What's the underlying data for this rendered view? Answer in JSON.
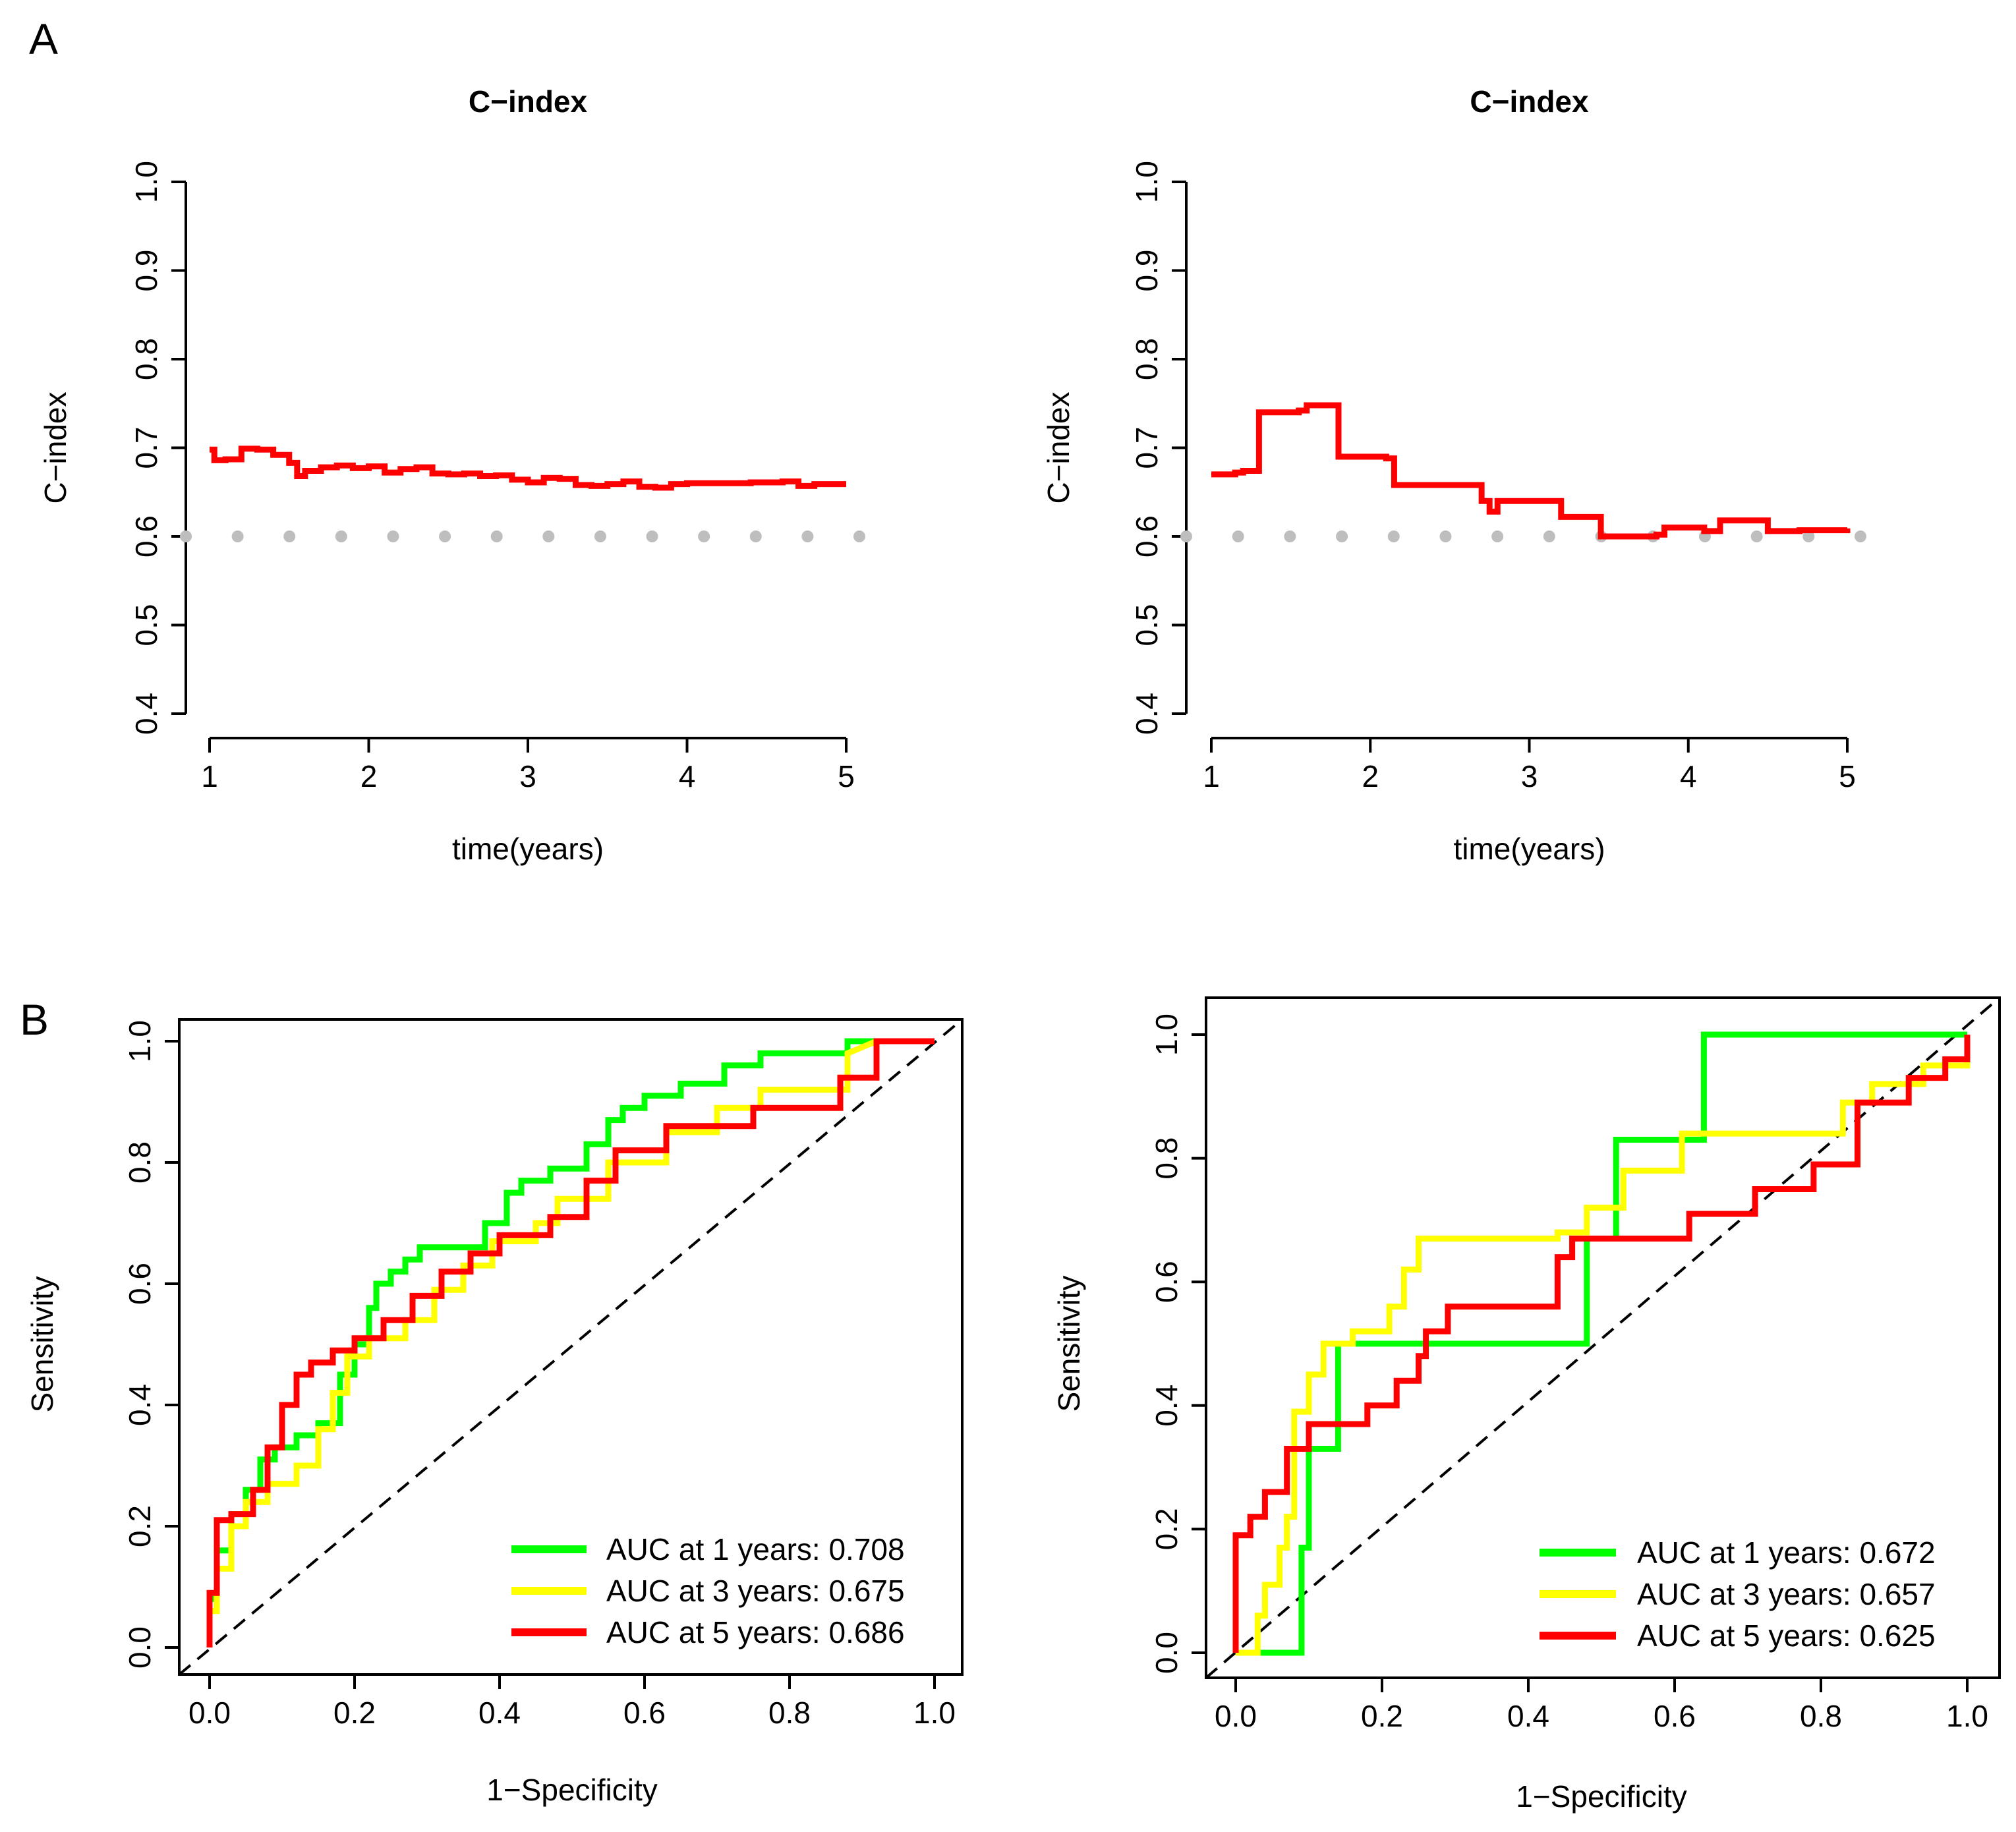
{
  "panel_labels": {
    "a": "A",
    "b": "B"
  },
  "chart_data": [
    {
      "type": "line",
      "panel": "A",
      "title": "C−index",
      "xlabel": "time(years)",
      "ylabel": "C−index",
      "xlim": [
        1,
        5
      ],
      "ylim": [
        0.4,
        1.0
      ],
      "xticks": [
        1,
        2,
        3,
        4,
        5
      ],
      "xtick_labels": [
        "1",
        "2",
        "3",
        "4",
        "5"
      ],
      "yticks": [
        0.4,
        0.5,
        0.6,
        0.7,
        0.8,
        0.9,
        1.0
      ],
      "ytick_labels": [
        "0.4",
        "0.5",
        "0.6",
        "0.7",
        "0.8",
        "0.9",
        "1.0"
      ],
      "reference": {
        "y": 0.6,
        "style": "dotted",
        "color": "#bebebe"
      },
      "series": [
        {
          "name": "C-index",
          "color": "#ff0000",
          "x": [
            1.0,
            1.03,
            1.1,
            1.2,
            1.3,
            1.4,
            1.5,
            1.55,
            1.6,
            1.7,
            1.8,
            1.9,
            2.0,
            2.1,
            2.2,
            2.3,
            2.4,
            2.5,
            2.6,
            2.7,
            2.8,
            2.9,
            3.0,
            3.1,
            3.2,
            3.3,
            3.4,
            3.5,
            3.6,
            3.7,
            3.8,
            3.9,
            4.0,
            4.2,
            4.4,
            4.6,
            4.7,
            4.8,
            5.0
          ],
          "y": [
            0.698,
            0.686,
            0.687,
            0.699,
            0.698,
            0.692,
            0.683,
            0.668,
            0.674,
            0.678,
            0.68,
            0.677,
            0.679,
            0.672,
            0.676,
            0.678,
            0.671,
            0.67,
            0.671,
            0.668,
            0.669,
            0.664,
            0.661,
            0.666,
            0.665,
            0.658,
            0.657,
            0.659,
            0.662,
            0.656,
            0.655,
            0.659,
            0.66,
            0.66,
            0.661,
            0.662,
            0.657,
            0.659,
            0.659
          ]
        }
      ]
    },
    {
      "type": "line",
      "panel": "A",
      "title": "C−index",
      "xlabel": "time(years)",
      "ylabel": "C−index",
      "xlim": [
        1,
        5
      ],
      "ylim": [
        0.4,
        1.0
      ],
      "xticks": [
        1,
        2,
        3,
        4,
        5
      ],
      "xtick_labels": [
        "1",
        "2",
        "3",
        "4",
        "5"
      ],
      "yticks": [
        0.4,
        0.5,
        0.6,
        0.7,
        0.8,
        0.9,
        1.0
      ],
      "ytick_labels": [
        "0.4",
        "0.5",
        "0.6",
        "0.7",
        "0.8",
        "0.9",
        "1.0"
      ],
      "reference": {
        "y": 0.6,
        "style": "dotted",
        "color": "#bebebe"
      },
      "series": [
        {
          "name": "C-index",
          "color": "#ff0000",
          "x": [
            1.0,
            1.15,
            1.2,
            1.3,
            1.55,
            1.6,
            1.8,
            2.1,
            2.15,
            2.5,
            2.7,
            2.75,
            2.8,
            3.0,
            3.2,
            3.45,
            3.8,
            3.85,
            4.1,
            4.2,
            4.5,
            4.7,
            5.0
          ],
          "y": [
            0.67,
            0.672,
            0.674,
            0.74,
            0.742,
            0.748,
            0.69,
            0.688,
            0.658,
            0.658,
            0.64,
            0.628,
            0.64,
            0.64,
            0.622,
            0.6,
            0.602,
            0.61,
            0.606,
            0.618,
            0.606,
            0.607,
            0.609
          ]
        }
      ]
    },
    {
      "type": "line",
      "panel": "B",
      "title": "",
      "xlabel": "1−Specificity",
      "ylabel": "Sensitivity",
      "xlim": [
        0,
        1
      ],
      "ylim": [
        0,
        1
      ],
      "xticks": [
        0.0,
        0.2,
        0.4,
        0.6,
        0.8,
        1.0
      ],
      "xtick_labels": [
        "0.0",
        "0.2",
        "0.4",
        "0.6",
        "0.8",
        "1.0"
      ],
      "yticks": [
        0.0,
        0.2,
        0.4,
        0.6,
        0.8,
        1.0
      ],
      "ytick_labels": [
        "0.0",
        "0.2",
        "0.4",
        "0.6",
        "0.8",
        "1.0"
      ],
      "reference": {
        "diagonal": true,
        "style": "dashed"
      },
      "legend_position": "bottom-right",
      "series": [
        {
          "name": "AUC at 1 years: 0.708",
          "color": "#00ff00",
          "x": [
            0.0,
            0.0,
            0.01,
            0.01,
            0.03,
            0.03,
            0.05,
            0.05,
            0.07,
            0.07,
            0.09,
            0.09,
            0.12,
            0.12,
            0.15,
            0.15,
            0.18,
            0.18,
            0.2,
            0.2,
            0.22,
            0.22,
            0.23,
            0.23,
            0.25,
            0.25,
            0.27,
            0.27,
            0.29,
            0.29,
            0.38,
            0.38,
            0.41,
            0.41,
            0.43,
            0.43,
            0.47,
            0.47,
            0.52,
            0.52,
            0.55,
            0.55,
            0.57,
            0.57,
            0.6,
            0.6,
            0.65,
            0.65,
            0.71,
            0.71,
            0.76,
            0.76,
            0.88,
            0.88,
            1.0
          ],
          "y": [
            0.0,
            0.08,
            0.08,
            0.16,
            0.16,
            0.22,
            0.22,
            0.26,
            0.26,
            0.31,
            0.31,
            0.33,
            0.33,
            0.35,
            0.35,
            0.37,
            0.37,
            0.45,
            0.45,
            0.5,
            0.5,
            0.56,
            0.56,
            0.6,
            0.6,
            0.62,
            0.62,
            0.64,
            0.64,
            0.66,
            0.66,
            0.7,
            0.7,
            0.75,
            0.75,
            0.77,
            0.77,
            0.79,
            0.79,
            0.83,
            0.83,
            0.87,
            0.87,
            0.89,
            0.89,
            0.91,
            0.91,
            0.93,
            0.93,
            0.96,
            0.96,
            0.98,
            0.98,
            1.0,
            1.0
          ]
        },
        {
          "name": "AUC at 3 years: 0.675",
          "color": "#ffff00",
          "x": [
            0.0,
            0.0,
            0.01,
            0.01,
            0.03,
            0.03,
            0.05,
            0.05,
            0.08,
            0.08,
            0.12,
            0.12,
            0.15,
            0.15,
            0.17,
            0.17,
            0.19,
            0.19,
            0.22,
            0.22,
            0.27,
            0.27,
            0.31,
            0.31,
            0.35,
            0.35,
            0.39,
            0.39,
            0.45,
            0.45,
            0.48,
            0.48,
            0.55,
            0.55,
            0.63,
            0.63,
            0.7,
            0.7,
            0.76,
            0.76,
            0.88,
            0.88,
            0.92,
            1.0
          ],
          "y": [
            0.0,
            0.06,
            0.06,
            0.13,
            0.13,
            0.2,
            0.2,
            0.24,
            0.24,
            0.27,
            0.27,
            0.3,
            0.3,
            0.36,
            0.36,
            0.42,
            0.42,
            0.48,
            0.48,
            0.51,
            0.51,
            0.54,
            0.54,
            0.59,
            0.59,
            0.63,
            0.63,
            0.67,
            0.67,
            0.7,
            0.7,
            0.74,
            0.74,
            0.8,
            0.8,
            0.85,
            0.85,
            0.89,
            0.89,
            0.92,
            0.92,
            0.98,
            1.0,
            1.0
          ]
        },
        {
          "name": "AUC at 5 years: 0.686",
          "color": "#ff0000",
          "x": [
            0.0,
            0.0,
            0.01,
            0.01,
            0.03,
            0.03,
            0.06,
            0.06,
            0.08,
            0.08,
            0.1,
            0.1,
            0.12,
            0.12,
            0.14,
            0.14,
            0.17,
            0.17,
            0.2,
            0.2,
            0.24,
            0.24,
            0.28,
            0.28,
            0.32,
            0.32,
            0.36,
            0.36,
            0.4,
            0.4,
            0.47,
            0.47,
            0.52,
            0.52,
            0.56,
            0.56,
            0.63,
            0.63,
            0.75,
            0.75,
            0.87,
            0.87,
            0.92,
            0.92,
            1.0
          ],
          "y": [
            0.0,
            0.09,
            0.09,
            0.21,
            0.21,
            0.22,
            0.22,
            0.26,
            0.26,
            0.33,
            0.33,
            0.4,
            0.4,
            0.45,
            0.45,
            0.47,
            0.47,
            0.49,
            0.49,
            0.51,
            0.51,
            0.54,
            0.54,
            0.58,
            0.58,
            0.62,
            0.62,
            0.65,
            0.65,
            0.68,
            0.68,
            0.71,
            0.71,
            0.77,
            0.77,
            0.82,
            0.82,
            0.86,
            0.86,
            0.89,
            0.89,
            0.94,
            0.94,
            1.0,
            1.0
          ]
        }
      ]
    },
    {
      "type": "line",
      "panel": "B",
      "title": "",
      "xlabel": "1−Specificity",
      "ylabel": "Sensitivity",
      "xlim": [
        0,
        1
      ],
      "ylim": [
        0,
        1
      ],
      "xticks": [
        0.0,
        0.2,
        0.4,
        0.6,
        0.8,
        1.0
      ],
      "xtick_labels": [
        "0.0",
        "0.2",
        "0.4",
        "0.6",
        "0.8",
        "1.0"
      ],
      "yticks": [
        0.0,
        0.2,
        0.4,
        0.6,
        0.8,
        1.0
      ],
      "ytick_labels": [
        "0.0",
        "0.2",
        "0.4",
        "0.6",
        "0.8",
        "1.0"
      ],
      "reference": {
        "diagonal": true,
        "style": "dashed"
      },
      "legend_position": "bottom-right",
      "series": [
        {
          "name": "AUC at 1 years: 0.672",
          "color": "#00ff00",
          "x": [
            0.0,
            0.09,
            0.09,
            0.1,
            0.1,
            0.14,
            0.14,
            0.48,
            0.48,
            0.52,
            0.52,
            0.64,
            0.64,
            1.0
          ],
          "y": [
            0.0,
            0.0,
            0.17,
            0.17,
            0.33,
            0.33,
            0.5,
            0.5,
            0.67,
            0.67,
            0.83,
            0.83,
            1.0,
            1.0
          ],
          "step": true
        },
        {
          "name": "AUC at 3 years: 0.657",
          "color": "#ffff00",
          "x": [
            0.0,
            0.03,
            0.03,
            0.04,
            0.04,
            0.06,
            0.06,
            0.07,
            0.07,
            0.08,
            0.08,
            0.1,
            0.1,
            0.12,
            0.12,
            0.16,
            0.16,
            0.21,
            0.21,
            0.23,
            0.23,
            0.25,
            0.25,
            0.44,
            0.44,
            0.48,
            0.48,
            0.53,
            0.53,
            0.61,
            0.61,
            0.83,
            0.83,
            0.87,
            0.87,
            0.94,
            0.94,
            0.97,
            0.97,
            1.0,
            1.0
          ],
          "y": [
            0.0,
            0.0,
            0.06,
            0.06,
            0.11,
            0.11,
            0.17,
            0.17,
            0.22,
            0.22,
            0.39,
            0.39,
            0.45,
            0.45,
            0.5,
            0.5,
            0.52,
            0.52,
            0.56,
            0.56,
            0.62,
            0.62,
            0.67,
            0.67,
            0.68,
            0.68,
            0.72,
            0.72,
            0.78,
            0.78,
            0.84,
            0.84,
            0.89,
            0.89,
            0.92,
            0.92,
            0.95,
            0.95,
            0.95,
            0.95,
            0.96
          ]
        },
        {
          "name": "AUC at 5 years: 0.625",
          "color": "#ff0000",
          "x": [
            0.0,
            0.0,
            0.02,
            0.02,
            0.04,
            0.04,
            0.07,
            0.07,
            0.1,
            0.1,
            0.18,
            0.18,
            0.22,
            0.22,
            0.25,
            0.25,
            0.26,
            0.26,
            0.29,
            0.29,
            0.44,
            0.44,
            0.46,
            0.46,
            0.62,
            0.62,
            0.71,
            0.71,
            0.79,
            0.79,
            0.85,
            0.85,
            0.92,
            0.92,
            0.97,
            0.97,
            1.0,
            1.0
          ],
          "y": [
            0.0,
            0.19,
            0.19,
            0.22,
            0.22,
            0.26,
            0.26,
            0.33,
            0.33,
            0.37,
            0.37,
            0.4,
            0.4,
            0.44,
            0.44,
            0.48,
            0.48,
            0.52,
            0.52,
            0.56,
            0.56,
            0.64,
            0.64,
            0.67,
            0.67,
            0.71,
            0.71,
            0.75,
            0.75,
            0.79,
            0.79,
            0.89,
            0.89,
            0.93,
            0.93,
            0.96,
            0.96,
            1.0
          ]
        }
      ]
    }
  ]
}
